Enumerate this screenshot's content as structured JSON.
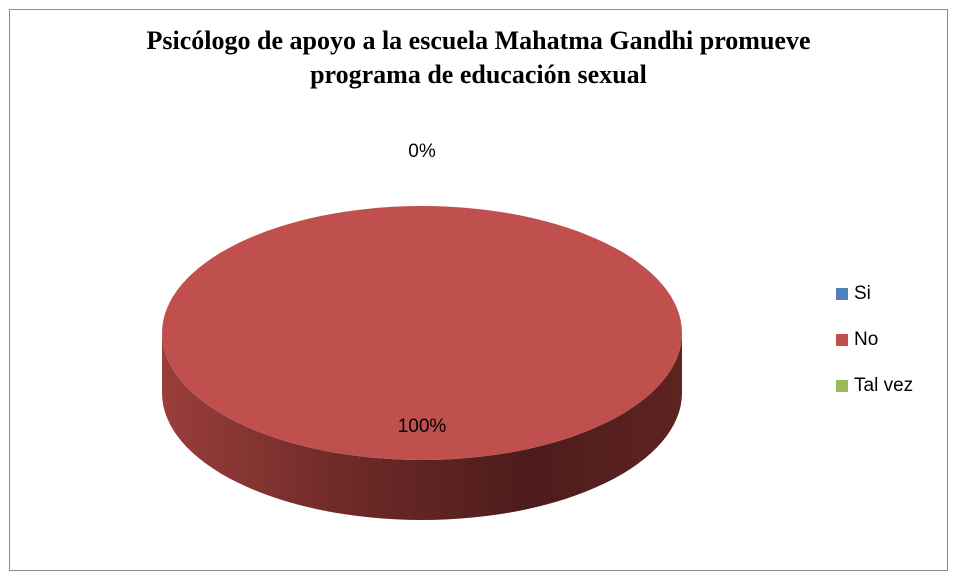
{
  "chart_data": {
    "type": "pie",
    "title": "Psicólogo de apoyo a la escuela Mahatma Gandhi promueve programa de educación sexual",
    "title_lines": [
      "Psicólogo de apoyo a la escuela Mahatma Gandhi promueve",
      "programa de educación sexual"
    ],
    "categories": [
      "Si",
      "No",
      "Tal vez"
    ],
    "values": [
      0,
      100,
      0
    ],
    "labels": [
      "0%",
      "100%",
      "0%"
    ],
    "visible_labels": [
      {
        "category": "Si",
        "text": "0%"
      },
      {
        "category": "No",
        "text": "100%"
      }
    ],
    "colors": [
      "#4f81bd",
      "#c0504d",
      "#9bbb59"
    ],
    "legend_position": "right",
    "style": "3d"
  }
}
